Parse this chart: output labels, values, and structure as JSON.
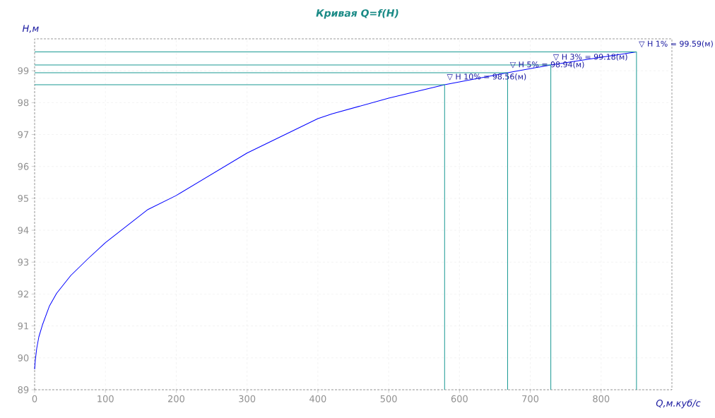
{
  "chart_data": {
    "type": "line",
    "title": "Кривая Q=f(H)",
    "xlabel": "Q,м.куб/с",
    "ylabel": "H,м",
    "xlim": [
      0,
      900
    ],
    "ylim": [
      89,
      100
    ],
    "xticks": [
      0,
      100,
      200,
      300,
      400,
      500,
      600,
      700,
      800
    ],
    "yticks": [
      89,
      90,
      91,
      92,
      93,
      94,
      95,
      96,
      97,
      98,
      99
    ],
    "grid": true,
    "marker": "none",
    "line_style": "solid",
    "series": [
      {
        "color": "#0000ff",
        "x": [
          0,
          1,
          3,
          6,
          11,
          21,
          31,
          51,
          75,
          100,
          160,
          200,
          300,
          400,
          420,
          500,
          579,
          668,
          729,
          850
        ],
        "values": [
          89.64,
          89.93,
          90.3,
          90.66,
          91.03,
          91.63,
          92.02,
          92.58,
          93.1,
          93.61,
          94.65,
          95.09,
          96.42,
          97.5,
          97.65,
          98.14,
          98.56,
          98.94,
          99.18,
          99.59
        ]
      },
      {
        "color": "#1a9a94",
        "x": [
          0,
          579,
          579
        ],
        "values": [
          98.56,
          98.56,
          89
        ]
      },
      {
        "color": "#1a9a94",
        "x": [
          0,
          668,
          668
        ],
        "values": [
          98.94,
          98.94,
          89
        ]
      },
      {
        "color": "#1a9a94",
        "x": [
          0,
          729,
          729
        ],
        "values": [
          99.18,
          99.18,
          89
        ]
      },
      {
        "color": "#1a9a94",
        "x": [
          0,
          850,
          850
        ],
        "values": [
          99.59,
          99.59,
          89
        ]
      }
    ],
    "annotations": [
      {
        "text": "▽ H 10% = 98.56(м)",
        "x": 579,
        "y": 98.56
      },
      {
        "text": "▽ H 5% = 98.94(м)",
        "x": 668,
        "y": 98.94
      },
      {
        "text": "▽ H 3% = 99.18(м)",
        "x": 729,
        "y": 99.18
      },
      {
        "text": "▽ H 1% = 99.59(м)",
        "x": 850,
        "y": 99.59
      }
    ]
  }
}
